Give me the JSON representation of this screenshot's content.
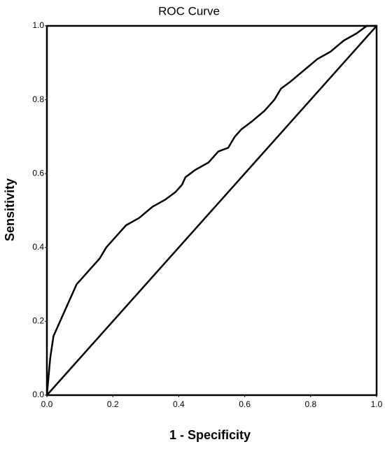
{
  "chart_data": {
    "type": "line",
    "title": "ROC Curve",
    "x_label": "1 - Specificity",
    "y_label": "Sensitivity",
    "xlim": [
      0,
      1
    ],
    "ylim": [
      0,
      1
    ],
    "xticks": [
      {
        "value": 0,
        "label": "0.0"
      },
      0.2,
      0.4,
      0.6,
      0.8,
      {
        "value": 1,
        "label": "1.0"
      }
    ],
    "yticks": [
      {
        "value": 0,
        "label": "0.0"
      },
      0.2,
      0.4,
      0.6,
      0.8,
      {
        "value": 1,
        "label": "1.0"
      }
    ],
    "grid": false,
    "series": [
      {
        "color": "#000000",
        "x": [
          0,
          0.005,
          0.01,
          0.02,
          0.03,
          0.05,
          0.07,
          0.09,
          0.11,
          0.13,
          0.16,
          0.18,
          0.21,
          0.24,
          0.28,
          0.32,
          0.36,
          0.39,
          0.41,
          0.42,
          0.45,
          0.49,
          0.52,
          0.55,
          0.57,
          0.59,
          0.62,
          0.66,
          0.69,
          0.71,
          0.74,
          0.78,
          0.82,
          0.86,
          0.9,
          0.94,
          0.97,
          1
        ],
        "values": [
          0,
          0.05,
          0.1,
          0.16,
          0.18,
          0.22,
          0.26,
          0.3,
          0.32,
          0.34,
          0.37,
          0.4,
          0.43,
          0.46,
          0.48,
          0.51,
          0.53,
          0.55,
          0.57,
          0.59,
          0.61,
          0.63,
          0.66,
          0.67,
          0.7,
          0.72,
          0.74,
          0.77,
          0.8,
          0.83,
          0.85,
          0.88,
          0.91,
          0.93,
          0.96,
          0.98,
          1,
          1
        ]
      },
      {
        "color": "#000000",
        "x": [
          0,
          1
        ],
        "values": [
          0,
          1
        ]
      }
    ]
  }
}
